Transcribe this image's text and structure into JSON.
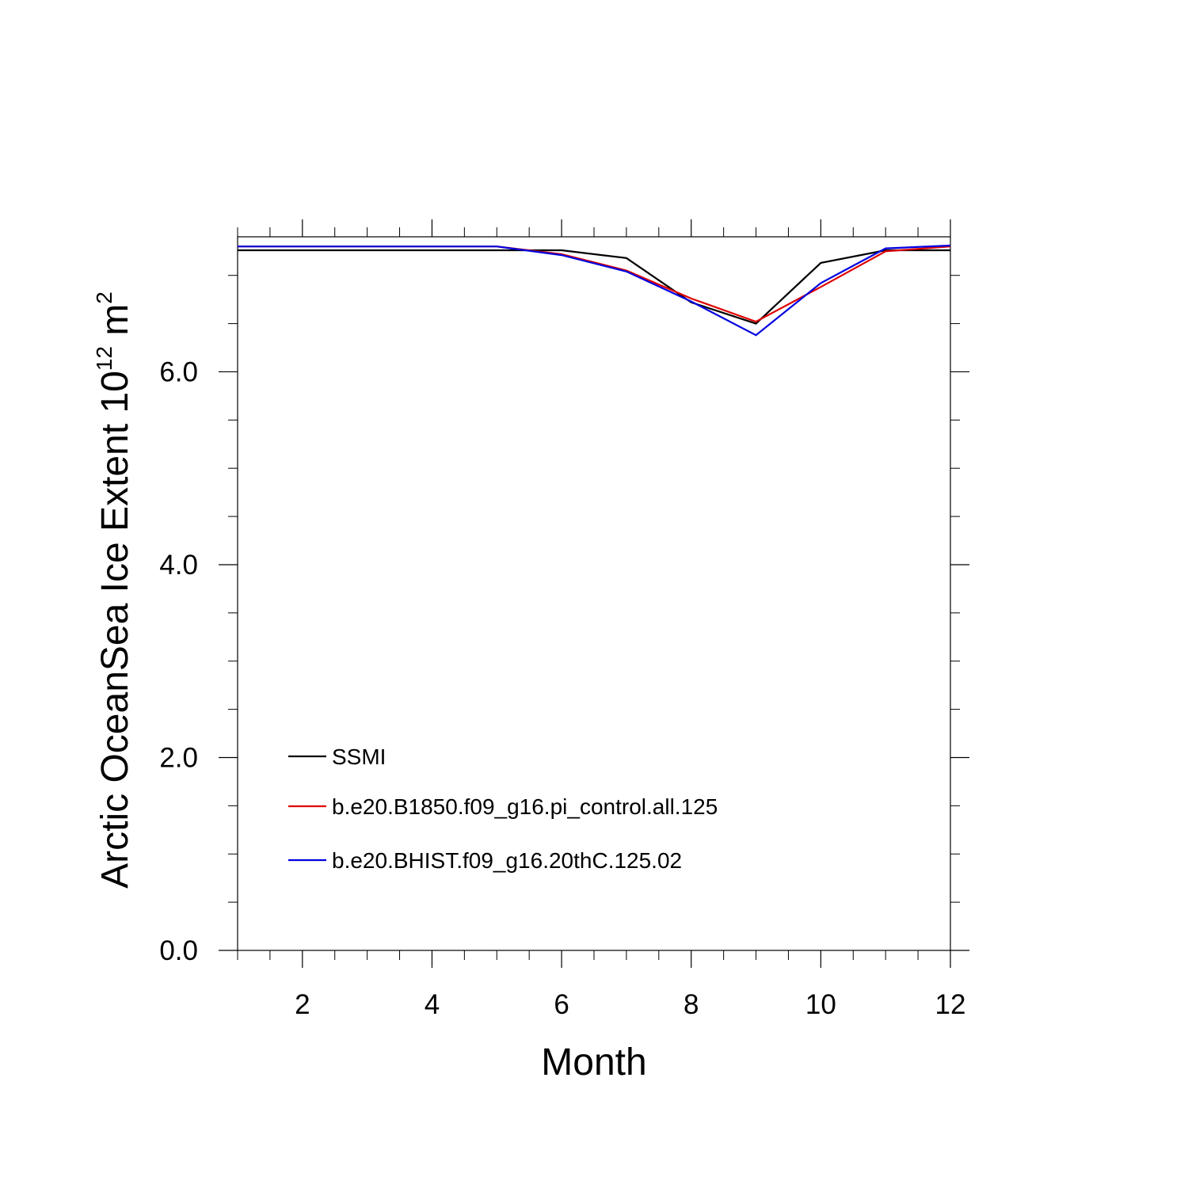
{
  "chart_data": {
    "type": "line",
    "xlabel": "Month",
    "ylabel": "Arctic OceanSea Ice Extent 10",
    "ylabel_sup": "12",
    "ylabel_unit": " m",
    "ylabel_unit_sup": "2",
    "xlim": [
      1,
      12
    ],
    "ylim": [
      0,
      7.4
    ],
    "x": [
      1,
      2,
      3,
      4,
      5,
      6,
      7,
      8,
      9,
      10,
      11,
      12
    ],
    "x_ticks": [
      2,
      4,
      6,
      8,
      10,
      12
    ],
    "x_tick_labels": [
      "2",
      "4",
      "6",
      "8",
      "10",
      "12"
    ],
    "y_ticks": [
      0,
      2,
      4,
      6
    ],
    "y_tick_labels": [
      "0.0",
      "2.0",
      "4.0",
      "6.0"
    ],
    "grid": false,
    "legend_position": "bottom-left",
    "series": [
      {
        "name": "SSMI",
        "color": "#000000",
        "values": [
          7.26,
          7.26,
          7.26,
          7.26,
          7.26,
          7.26,
          7.18,
          6.72,
          6.5,
          7.13,
          7.26,
          7.26
        ]
      },
      {
        "name": "b.e20.B1850.f09_g16.pi_control.all.125",
        "color": "#e00000",
        "values": [
          7.3,
          7.3,
          7.3,
          7.3,
          7.3,
          7.22,
          7.05,
          6.76,
          6.52,
          6.88,
          7.25,
          7.3
        ]
      },
      {
        "name": "b.e20.BHIST.f09_g16.20thC.125.02",
        "color": "#0000e0",
        "values": [
          7.3,
          7.3,
          7.3,
          7.3,
          7.3,
          7.21,
          7.04,
          6.73,
          6.38,
          6.92,
          7.28,
          7.31
        ]
      }
    ]
  }
}
